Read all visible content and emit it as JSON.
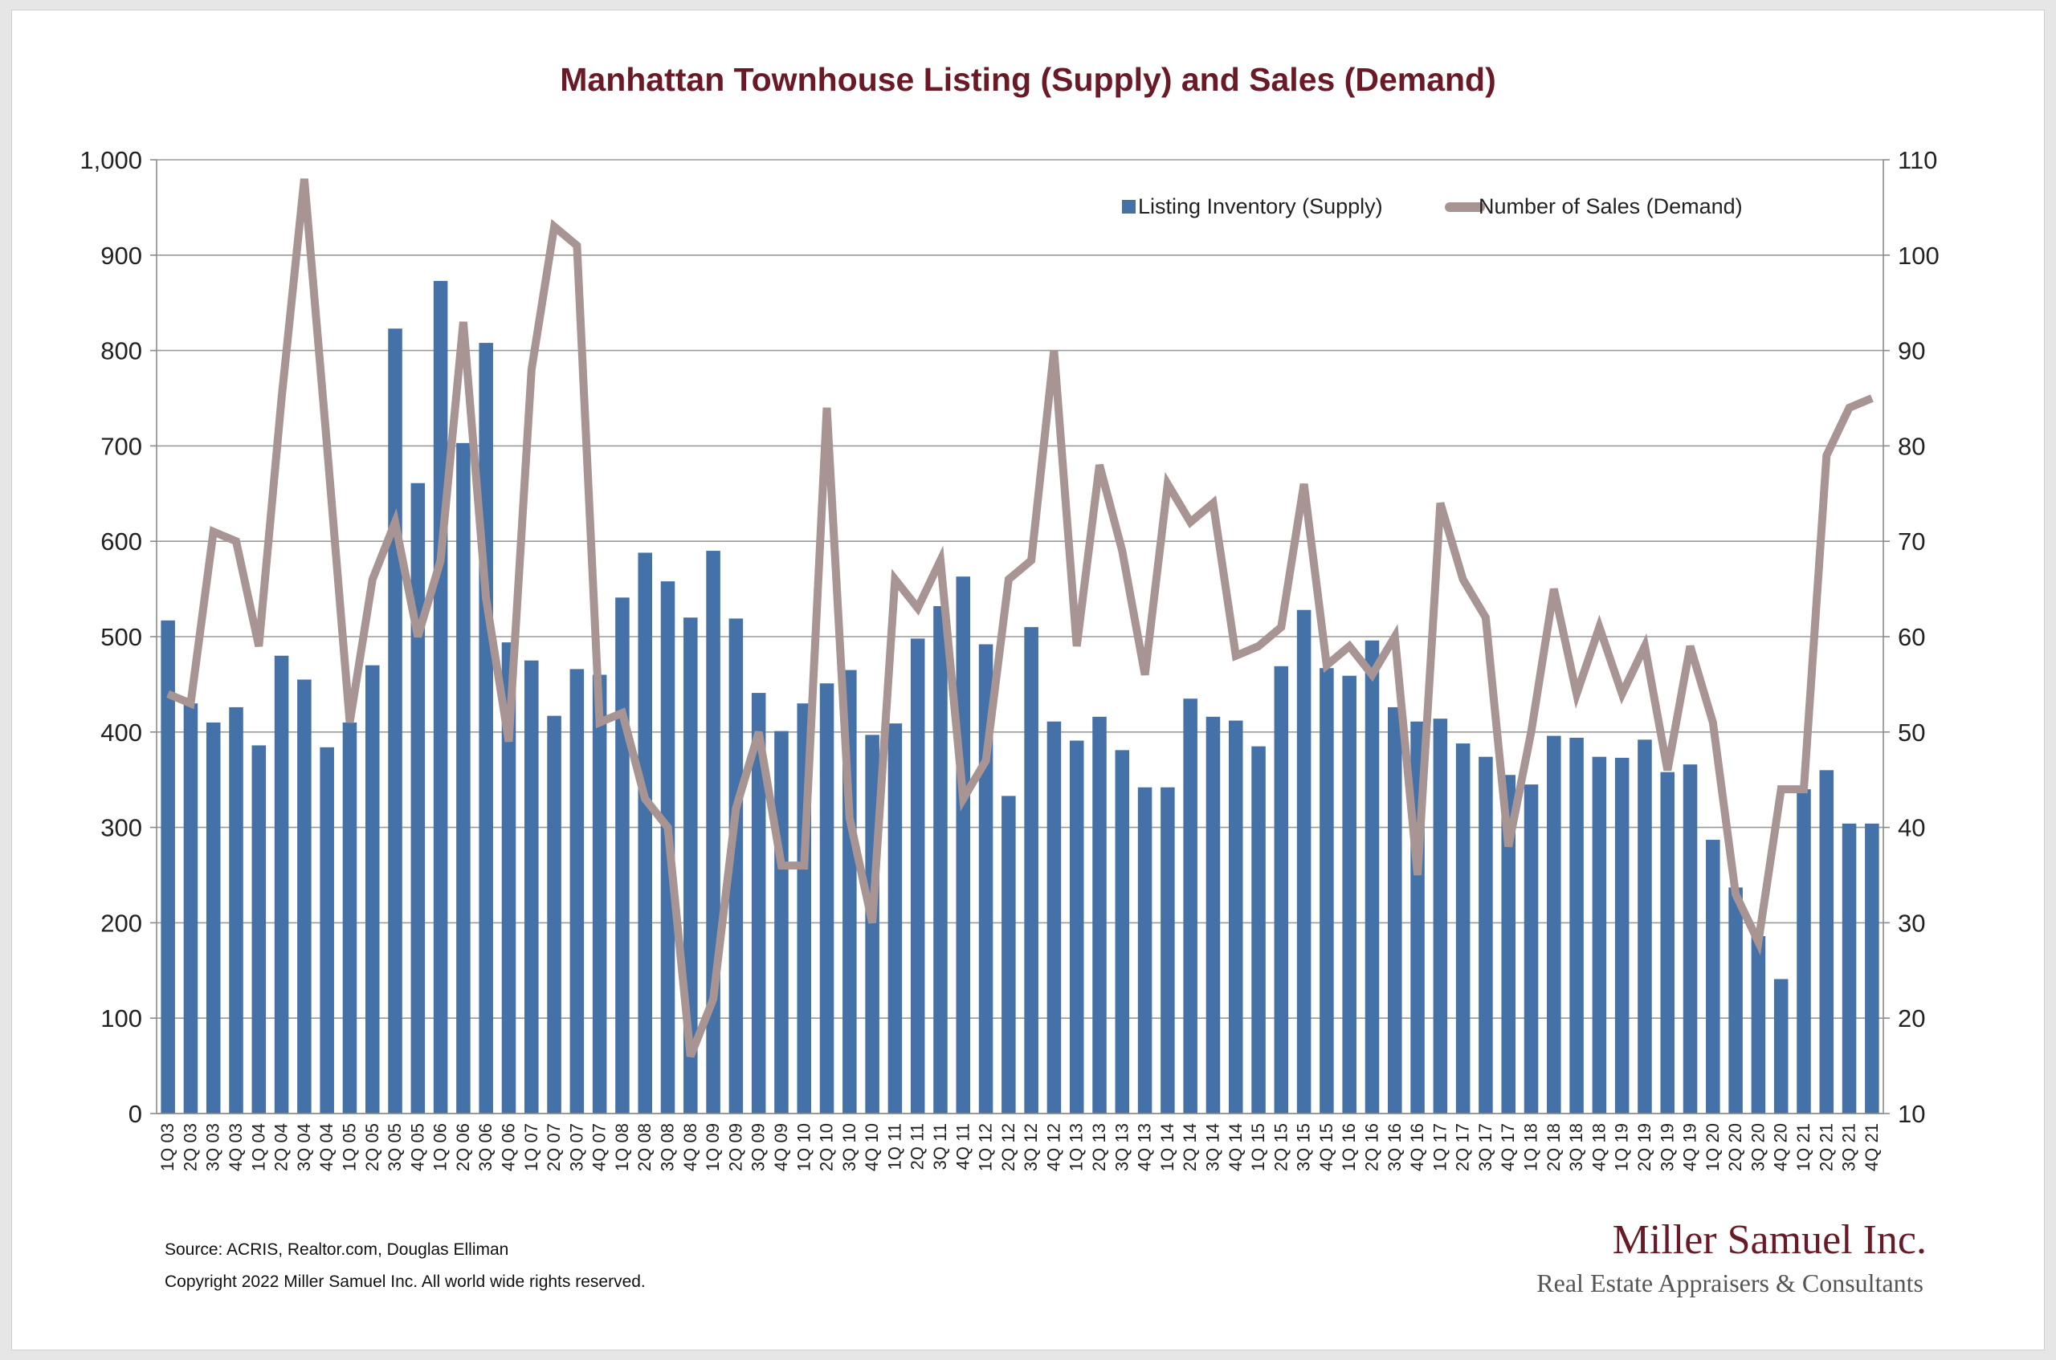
{
  "chart_data": {
    "type": "bar+line",
    "title": "Manhattan Townhouse Listing (Supply) and Sales (Demand)",
    "categories": [
      "1Q 03",
      "2Q 03",
      "3Q 03",
      "4Q 03",
      "1Q 04",
      "2Q 04",
      "3Q 04",
      "4Q 04",
      "1Q 05",
      "2Q 05",
      "3Q 05",
      "4Q 05",
      "1Q 06",
      "2Q 06",
      "3Q 06",
      "4Q 06",
      "1Q 07",
      "2Q 07",
      "3Q 07",
      "4Q 07",
      "1Q 08",
      "2Q 08",
      "3Q 08",
      "4Q 08",
      "1Q 09",
      "2Q 09",
      "3Q 09",
      "4Q 09",
      "1Q 10",
      "2Q 10",
      "3Q 10",
      "4Q 10",
      "1Q 11",
      "2Q 11",
      "3Q 11",
      "4Q 11",
      "1Q 12",
      "2Q 12",
      "3Q 12",
      "4Q 12",
      "1Q 13",
      "2Q 13",
      "3Q 13",
      "4Q 13",
      "1Q 14",
      "2Q 14",
      "3Q 14",
      "4Q 14",
      "1Q 15",
      "2Q 15",
      "3Q 15",
      "4Q 15",
      "1Q 16",
      "2Q 16",
      "3Q 16",
      "4Q 16",
      "1Q 17",
      "2Q 17",
      "3Q 17",
      "4Q 17",
      "1Q 18",
      "2Q 18",
      "3Q 18",
      "4Q 18",
      "1Q 19",
      "2Q 19",
      "3Q 19",
      "4Q 19",
      "1Q 20",
      "2Q 20",
      "3Q 20",
      "4Q 20",
      "1Q 21",
      "2Q 21",
      "3Q 21",
      "4Q 21"
    ],
    "series": [
      {
        "name": "Listing Inventory (Supply)",
        "type": "bar",
        "axis": "left",
        "color": "#4472a8",
        "values": [
          517,
          430,
          410,
          426,
          386,
          480,
          455,
          384,
          410,
          470,
          823,
          661,
          873,
          703,
          808,
          494,
          475,
          417,
          466,
          460,
          541,
          588,
          558,
          520,
          590,
          519,
          441,
          401,
          430,
          451,
          465,
          397,
          409,
          498,
          532,
          563,
          492,
          333,
          510,
          411,
          391,
          416,
          381,
          342,
          342,
          435,
          416,
          412,
          385,
          469,
          528,
          467,
          459,
          496,
          426,
          411,
          414,
          388,
          374,
          355,
          345,
          396,
          394,
          374,
          373,
          392,
          358,
          366,
          287,
          237,
          186,
          141,
          340,
          360,
          304,
          304
        ]
      },
      {
        "name": "Number of Sales (Demand)",
        "type": "line",
        "axis": "right",
        "color": "#a79493",
        "values": [
          54,
          53,
          71,
          70,
          59,
          85,
          108,
          80,
          51,
          66,
          72,
          60,
          68,
          93,
          64,
          49,
          88,
          103,
          101,
          51,
          52,
          43,
          40,
          16,
          22,
          42,
          50,
          36,
          36,
          84,
          41,
          30,
          66,
          63,
          68,
          43,
          47,
          66,
          68,
          90,
          59,
          78,
          69,
          56,
          76,
          72,
          74,
          58,
          59,
          61,
          76,
          57,
          59,
          56,
          60,
          35,
          74,
          66,
          62,
          38,
          50,
          65,
          54,
          61,
          54,
          59,
          46,
          59,
          51,
          33,
          28,
          44,
          44,
          79,
          84,
          85
        ]
      }
    ],
    "y_left": {
      "ylim": [
        0,
        1000
      ],
      "ticks": [
        "0",
        "100",
        "200",
        "300",
        "400",
        "500",
        "600",
        "700",
        "800",
        "900",
        "1,000"
      ]
    },
    "y_right": {
      "ylim": [
        10,
        110
      ],
      "ticks": [
        "10",
        "20",
        "30",
        "40",
        "50",
        "60",
        "70",
        "80",
        "90",
        "100",
        "110"
      ]
    },
    "grid": true,
    "legend": {
      "position": "top-right",
      "entries": [
        "Listing Inventory (Supply)",
        "Number of Sales (Demand)"
      ]
    },
    "title_color": "#6a1a26"
  },
  "footer": {
    "source": "Source: ACRIS, Realtor.com, Douglas Elliman",
    "copyright": "Copyright 2022 Miller Samuel Inc.  All world wide rights reserved."
  },
  "brand": {
    "name": "Miller Samuel Inc.",
    "tagline": "Real Estate Appraisers & Consultants",
    "name_color": "#6a1a26",
    "tagline_color": "#555555"
  }
}
